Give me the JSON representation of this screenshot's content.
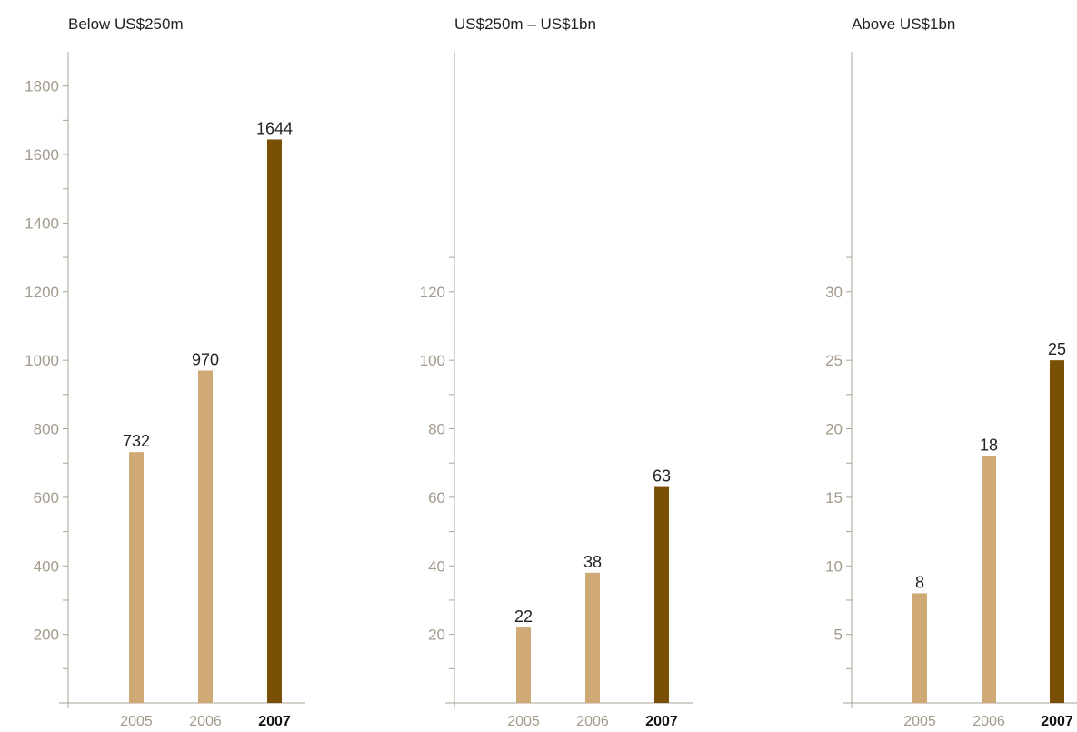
{
  "colors": {
    "bar_light": "#cfaa77",
    "bar_dark": "#7a5006",
    "axis": "#a9a296",
    "tick_text": "#a39a8c",
    "label_text": "#222222"
  },
  "chart_data": [
    {
      "type": "bar",
      "title": "Below US$250m",
      "categories": [
        "2005",
        "2006",
        "2007"
      ],
      "highlight_category": "2007",
      "values": [
        732,
        970,
        1644
      ],
      "data_labels": [
        "732",
        "970",
        "1644"
      ],
      "yticks": [
        200,
        400,
        600,
        800,
        1000,
        1200,
        1400,
        1600,
        1800
      ],
      "ytick_labels": [
        "200",
        "400",
        "600",
        "800",
        "1000",
        "1200",
        "1400",
        "1600",
        "1800"
      ],
      "ylim": [
        0,
        1900
      ],
      "grid": false
    },
    {
      "type": "bar",
      "title": "US$250m – US$1bn",
      "categories": [
        "2005",
        "2006",
        "2007"
      ],
      "highlight_category": "2007",
      "values": [
        22,
        38,
        63
      ],
      "data_labels": [
        "22",
        "38",
        "63"
      ],
      "yticks": [
        20,
        40,
        60,
        80,
        100,
        120
      ],
      "ytick_labels": [
        "20",
        "40",
        "60",
        "80",
        "100",
        "120"
      ],
      "ylim": [
        0,
        190
      ],
      "grid": false
    },
    {
      "type": "bar",
      "title": "Above US$1bn",
      "categories": [
        "2005",
        "2006",
        "2007"
      ],
      "highlight_category": "2007",
      "values": [
        8,
        18,
        25
      ],
      "data_labels": [
        "8",
        "18",
        "25"
      ],
      "yticks": [
        5,
        10,
        15,
        20,
        25,
        30
      ],
      "ytick_labels": [
        "5",
        "10",
        "15",
        "20",
        "25",
        "30"
      ],
      "ylim": [
        0,
        47.5
      ],
      "grid": false
    }
  ]
}
